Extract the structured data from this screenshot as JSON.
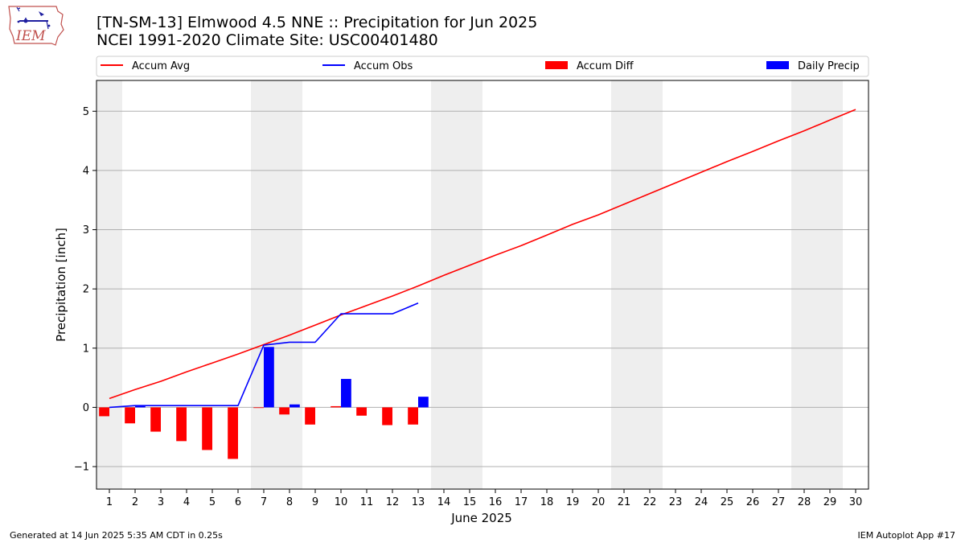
{
  "header": {
    "logo_text": "IEM",
    "title_line1": "[TN-SM-13] Elmwood 4.5 NNE :: Precipitation for Jun 2025",
    "title_line2": "NCEI 1991-2020 Climate Site: USC00401480"
  },
  "footer": {
    "generated": "Generated at 14 Jun 2025 5:35 AM CDT in 0.25s",
    "app": "IEM Autoplot App #17"
  },
  "colors": {
    "accum_avg": "#ff0000",
    "accum_obs": "#0000ff",
    "accum_diff": "#ff0000",
    "daily_precip": "#0000ff",
    "weekend_shade": "#eeeeee",
    "grid": "#b0b0b0"
  },
  "chart_data": {
    "type": "bar",
    "xlabel": "June 2025",
    "ylabel": "Precipitation [inch]",
    "xlim": [
      0.5,
      30.5
    ],
    "ylim": [
      -1.38,
      5.52
    ],
    "x_ticks": [
      1,
      2,
      3,
      4,
      5,
      6,
      7,
      8,
      9,
      10,
      11,
      12,
      13,
      14,
      15,
      16,
      17,
      18,
      19,
      20,
      21,
      22,
      23,
      24,
      25,
      26,
      27,
      28,
      29,
      30
    ],
    "y_ticks": [
      -1,
      0,
      1,
      2,
      3,
      4,
      5
    ],
    "y_tick_labels": [
      "−1",
      "0",
      "1",
      "2",
      "3",
      "4",
      "5"
    ],
    "grid": "y",
    "legend_position": "top",
    "weekend_shading": [
      [
        0.5,
        1.5
      ],
      [
        6.5,
        8.5
      ],
      [
        13.5,
        15.5
      ],
      [
        20.5,
        22.5
      ],
      [
        27.5,
        29.5
      ]
    ],
    "series": [
      {
        "name": "Accum Avg",
        "kind": "line",
        "x": [
          1,
          2,
          3,
          4,
          5,
          6,
          7,
          8,
          9,
          10,
          11,
          12,
          13,
          14,
          15,
          16,
          17,
          18,
          19,
          20,
          21,
          22,
          23,
          24,
          25,
          26,
          27,
          28,
          29,
          30
        ],
        "values": [
          0.15,
          0.3,
          0.44,
          0.6,
          0.75,
          0.9,
          1.06,
          1.22,
          1.39,
          1.56,
          1.72,
          1.88,
          2.05,
          2.23,
          2.4,
          2.57,
          2.73,
          2.91,
          3.09,
          3.25,
          3.43,
          3.61,
          3.79,
          3.97,
          4.15,
          4.32,
          4.5,
          4.67,
          4.85,
          5.03
        ]
      },
      {
        "name": "Accum Obs",
        "kind": "line",
        "x": [
          1,
          2,
          3,
          4,
          5,
          6,
          7,
          8,
          9,
          10,
          11,
          12,
          13
        ],
        "values": [
          0.0,
          0.03,
          0.03,
          0.03,
          0.03,
          0.03,
          1.05,
          1.1,
          1.1,
          1.58,
          1.58,
          1.58,
          1.76
        ]
      },
      {
        "name": "Accum Diff",
        "kind": "bar",
        "x": [
          1,
          2,
          3,
          4,
          5,
          6,
          7,
          8,
          9,
          10,
          11,
          12,
          13
        ],
        "values": [
          -0.15,
          -0.27,
          -0.41,
          -0.57,
          -0.72,
          -0.87,
          -0.01,
          -0.12,
          -0.29,
          0.02,
          -0.14,
          -0.3,
          -0.29
        ]
      },
      {
        "name": "Daily Precip",
        "kind": "bar",
        "x": [
          1,
          2,
          3,
          4,
          5,
          6,
          7,
          8,
          9,
          10,
          11,
          12,
          13
        ],
        "values": [
          0.0,
          0.03,
          0.0,
          0.0,
          0.0,
          0.0,
          1.02,
          0.05,
          0.0,
          0.48,
          0.0,
          0.0,
          0.18
        ]
      }
    ]
  }
}
